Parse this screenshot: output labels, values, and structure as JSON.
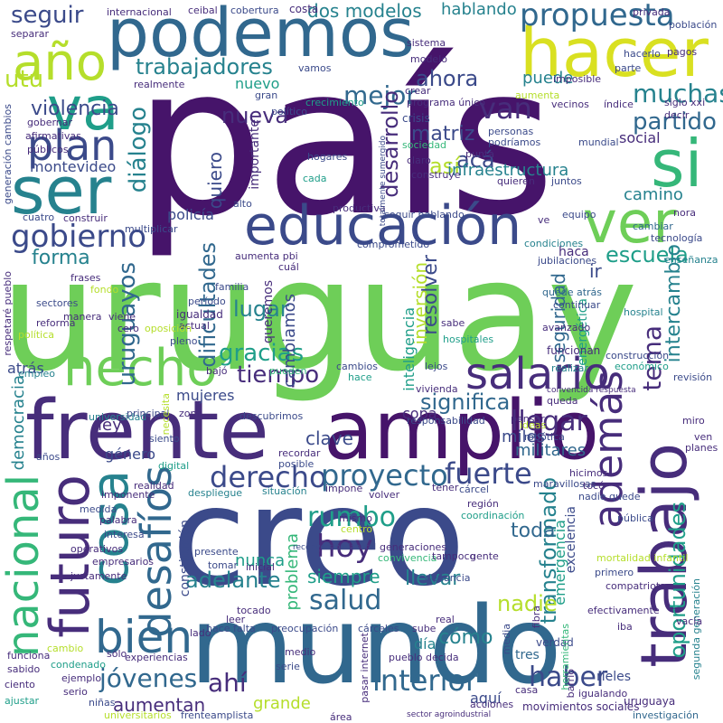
{
  "palette": {
    "dark_purple": "#46146a",
    "purple": "#472d7b",
    "indigo": "#3b4a8a",
    "blue": "#31688e",
    "teal": "#26828e",
    "green_teal": "#1f9e89",
    "green": "#35b779",
    "light_green": "#6ece58",
    "lime": "#b5de2b",
    "yellow": "#d9e021"
  },
  "words": {
    "pais": "país",
    "uruguay": "uruguay",
    "creo": "creo",
    "mundo": "mundo",
    "frente": "frente",
    "amplio": "amplio",
    "podemos": "podemos",
    "hacer": "hacer",
    "educacion": "educación",
    "ser": "ser",
    "si": "si",
    "ver": "ver",
    "va": "va",
    "ano": "año",
    "hecho": "hecho",
    "trabajo": "trabajo",
    "futuro": "futuro",
    "nacional": "nacional",
    "cosa": "cosa",
    "desafios": "desafíos",
    "bien": "bien",
    "salario": "salario",
    "plan": "plan",
    "gobierno": "gobierno",
    "ademas": "además",
    "derecho": "derecho",
    "proyecto": "proyecto",
    "hoy": "hoy",
    "propuesta": "propuesta",
    "trabajadores": "trabajadores",
    "mejor": "mejor",
    "seguir": "seguir",
    "muchas": "muchas",
    "partido": "partido",
    "van": "van",
    "aca": "acá",
    "asi": "así",
    "tiempo": "tiempo",
    "gracias": "gracias",
    "fuerte": "fuerte",
    "rumbo": "rumbo",
    "salud": "salud",
    "adelante": "adelante",
    "jovenes": "jóvenes",
    "ahi": "ahí",
    "interior": "interior",
    "haber": "haber",
    "llegar": "llegar",
    "significa": "significa",
    "tema": "tema",
    "oportunidades": "oportunidades",
    "transformado": "transformado",
    "uruguayos": "uruguayos",
    "dialogo": "diálogo",
    "violencia": "violencia",
    "montevideo": "montevideo",
    "escuela": "escuela",
    "forma": "forma",
    "lugar": "lugar",
    "nueva": "nueva",
    "ahora": "ahora",
    "desarrollo": "desarrollo",
    "matriz": "matriz",
    "infraestructura": "infraestructura",
    "social": "social",
    "camino": "camino",
    "puede": "puede",
    "utu": "utu",
    "dificultades": "dificultades",
    "cambiamos": "cambiamos",
    "inversion": "inversión",
    "resolver": "resolver",
    "seguridad": "seguridad",
    "intercambio": "intercambio",
    "mujeres": "mujeres",
    "nunca": "nunca",
    "problema": "problema",
    "siempre": "siempre",
    "llevar": "llevar",
    "toda": "toda",
    "nadie": "nadie",
    "como": "cómo",
    "aumentan": "aumentan",
    "grande": "grande",
    "aqui": "aquí",
    "dia": "día",
    "democracia": "democracia",
    "atras": "atrás",
    "ley": "ley",
    "genero": "género",
    "clave": "clave",
    "copa": "copa",
    "miles": "miles",
    "militares": "militares",
    "dos_modelos": "dos modelos",
    "hablando": "hablando",
    "nuevo": "nuevo",
    "policia": "policía",
    "quiero": "quiero",
    "importante": "importante",
    "queremos": "queremos",
    "inteligencia": "inteligencia",
    "energetica": "energética",
    "emergencia": "emergencia",
    "excelencia": "excelencia",
    "ir": "ir",
    "movimientos_sociales": "movimientos sociales",
    "uruguaya": "uruguaya",
    "tres": "tres",
    "verdad": "verdad",
    "rieles": "rieles",
    "constitucion": "constitución",
    "costa": "costa",
    "crecimiento": "crecimiento",
    "programa_unico": "programa único",
    "crisis": "crisis",
    "hospitales": "hospitales",
    "quede_atras": "quede atrás",
    "economico": "económico",
    "funcionan": "funcionan",
    "construccion": "construcción",
    "vivienda": "vivienda",
    "cambios": "cambios",
    "lejos": "lejos",
    "realizar": "realizar",
    "hace": "hace",
    "pueden": "pueden",
    "bajo": "bajó",
    "igualdad": "igualdad",
    "periodo": "período",
    "sociedad": "sociedad",
    "hogares": "hogares",
    "construye": "construye",
    "alto": "alto",
    "imposible": "imposible",
    "mundial": "mundial",
    "indice": "índice",
    "cambiar": "cambiar",
    "tecnologia": "tecnología",
    "equipo": "equipo",
    "jubilaciones": "jubilaciones",
    "condiciones": "condiciones",
    "avanzado": "avanzado",
    "hospital": "hospital",
    "continuar": "continuar",
    "revision": "revisión",
    "recordar": "recordar",
    "posible": "posible",
    "impone": "impone",
    "volver": "volver",
    "tener": "tener",
    "carcel": "cárcel",
    "region": "región",
    "hicimos": "hicimos",
    "toco": "tocó",
    "nadie_quede": "nadie quede",
    "publica": "pública",
    "situacion": "situación",
    "despliegue": "despliegue",
    "digital": "digital",
    "realidad": "realidad",
    "imponente": "imponente",
    "medida": "medida",
    "palabra": "palabra",
    "interesa": "interesa",
    "operativos": "operativos",
    "empresarios": "empresarios",
    "justamente": "justamente",
    "presente": "presente",
    "tomar": "tomar",
    "inicial": "inicial",
    "generaciones": "generaciones",
    "convivencia": "convivencia",
    "tampoco": "tampoco",
    "gente": "gente",
    "denuncia": "denuncia",
    "compatriotas": "compatriotas",
    "mortalidad_infantil": "mortalidad infantil",
    "segunda_generacion": "segunda generación",
    "primero": "primero",
    "vacia": "vacía",
    "hace_falta": "hace falta",
    "preocupacion": "preocupación",
    "carceles": "cárceles",
    "sube": "sube",
    "pasar_internet": "pasar internet",
    "real": "real",
    "fibra": "fibra",
    "efectivamente": "efectivamente",
    "media": "media",
    "herramientas": "herramientas",
    "barrio": "barrio",
    "casa": "casa",
    "iba": "iba",
    "sector_agroindustrial": "sector agroindustrial",
    "igualando": "igualando",
    "investigacion": "investigación",
    "area": "área",
    "acciones": "acciones",
    "pueblo_decida": "pueblo decida",
    "serie": "serie",
    "medio": "medio",
    "solo": "sólo",
    "cambio": "cambio",
    "funciona": "funciona",
    "sabido": "sabido",
    "ciento": "ciento",
    "ajustar": "ajustar",
    "ejemplo": "ejemplo",
    "serio": "serio",
    "condenado": "condenado",
    "experiencias": "experiencias",
    "ninas": "niñas",
    "universitarios": "universitarios",
    "frenteamplista": "frenteamplista",
    "empleo": "empleo",
    "universidad": "universidad",
    "principal": "principal",
    "zona": "zona",
    "descubrimos": "descubrimos",
    "responsabilidad": "responsabilidad",
    "cuatro": "cuatro",
    "construir": "construir",
    "multiplicar": "multiplicar",
    "frases": "frases",
    "reforma": "reforma",
    "publicos": "públicos",
    "gobernar": "gobernar",
    "separar": "separar",
    "internacional": "internacional",
    "ceibal": "ceibal",
    "cobertura": "cobertura",
    "vamos": "vamos",
    "gran": "gran",
    "realmente": "realmente",
    "politico": "político",
    "sistema": "sistema",
    "privada": "privada",
    "poblacion": "población",
    "pagos": "pagos",
    "siglo_xxi": "siglo xxi",
    "decir": "decir",
    "parte": "parte",
    "vecinos": "vecinos",
    "podriamos": "podríamos",
    "personas": "personas",
    "quieren": "quieren",
    "juntos": "juntos",
    "claro": "claro",
    "punta": "punta",
    "seguir_hablando": "seguir hablando",
    "productiva": "productiva",
    "aumenta_pbi": "aumenta pbi",
    "comprometido": "comprometido",
    "cual": "cuál",
    "familia": "familia",
    "actual": "actual",
    "pleno": "pleno",
    "modelo": "modelo",
    "sabe": "sabe",
    "totalmente_sumergido": "totalmente sumergido",
    "crear": "crear",
    "hacerlo": "hacerlo",
    "aumenta": "aumenta",
    "viene": "viene",
    "cero": "cero",
    "oposicion": "oposición",
    "ve": "ve",
    "haca": "haca",
    "ensenanza": "enseñanza",
    "respetare_pueblo": "respetaré pueblo",
    "generacion_cambios": "generación cambios",
    "afirmativas": "afirmativas",
    "politica": "política",
    "ano2": "años",
    "fondo": "fondo",
    "cada": "cada",
    "nora": "nora",
    "miro": "miro",
    "ven": "ven",
    "planes": "planes",
    "queda": "queda",
    "convencida_respuesta": "convencida respuesta",
    "pensar": "pensar",
    "ideas": "ideas",
    "robotica": "robótica",
    "maravillosas": "maravillosas",
    "coordinacion": "coordinación",
    "mismo": "mismo",
    "centro": "centro",
    "reconversion_laboral": "reconversión laboral",
    "leer": "leer",
    "lado": "lado",
    "tocado": "tocado",
    "necesita": "necesita",
    "siento": "siento",
    "sectores": "sectores",
    "manera": "manera"
  }
}
